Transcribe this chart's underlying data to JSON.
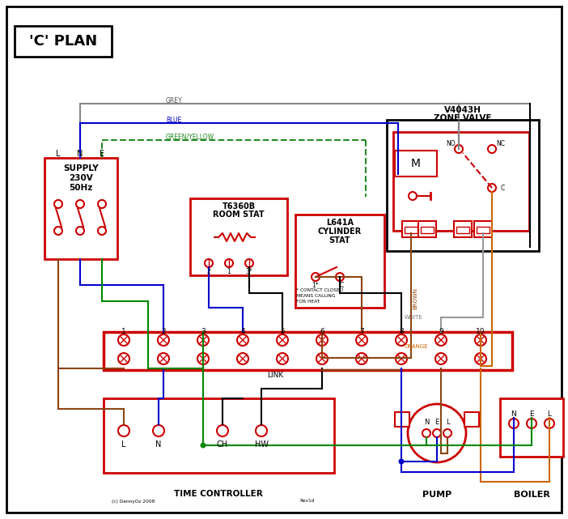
{
  "title": "'C' PLAN",
  "bg_color": "#ffffff",
  "border_color": "#000000",
  "red": "#cc0000",
  "blue": "#0000cc",
  "green": "#008800",
  "grey": "#888888",
  "brown": "#8B4513",
  "orange": "#cc6600",
  "black": "#000000",
  "supply_text": [
    "SUPPLY",
    "230V",
    "50Hz"
  ],
  "supply_lne": [
    "L",
    "N",
    "E"
  ],
  "zone_valve_title": [
    "V4043H",
    "ZONE VALVE"
  ],
  "room_stat_title": [
    "T6360B",
    "ROOM STAT"
  ],
  "cyl_stat_title": [
    "L641A",
    "CYLINDER",
    "STAT"
  ],
  "terminal_labels": [
    "1",
    "2",
    "3",
    "4",
    "5",
    "6",
    "7",
    "8",
    "9",
    "10"
  ],
  "time_controller_label": "TIME CONTROLLER",
  "time_controller_terminals": [
    "L",
    "N",
    "CH",
    "HW"
  ],
  "pump_label": "PUMP",
  "boiler_label": "BOILER",
  "pump_terminals": [
    "N",
    "E",
    "L"
  ],
  "boiler_terminals": [
    "N",
    "E",
    "L"
  ],
  "link_label": "LINK",
  "copyright": "(c) DennyOz 2008",
  "rev": "Rev1d",
  "contact_note": [
    "* CONTACT CLOSED",
    "MEANS CALLING",
    "FOR HEAT"
  ]
}
